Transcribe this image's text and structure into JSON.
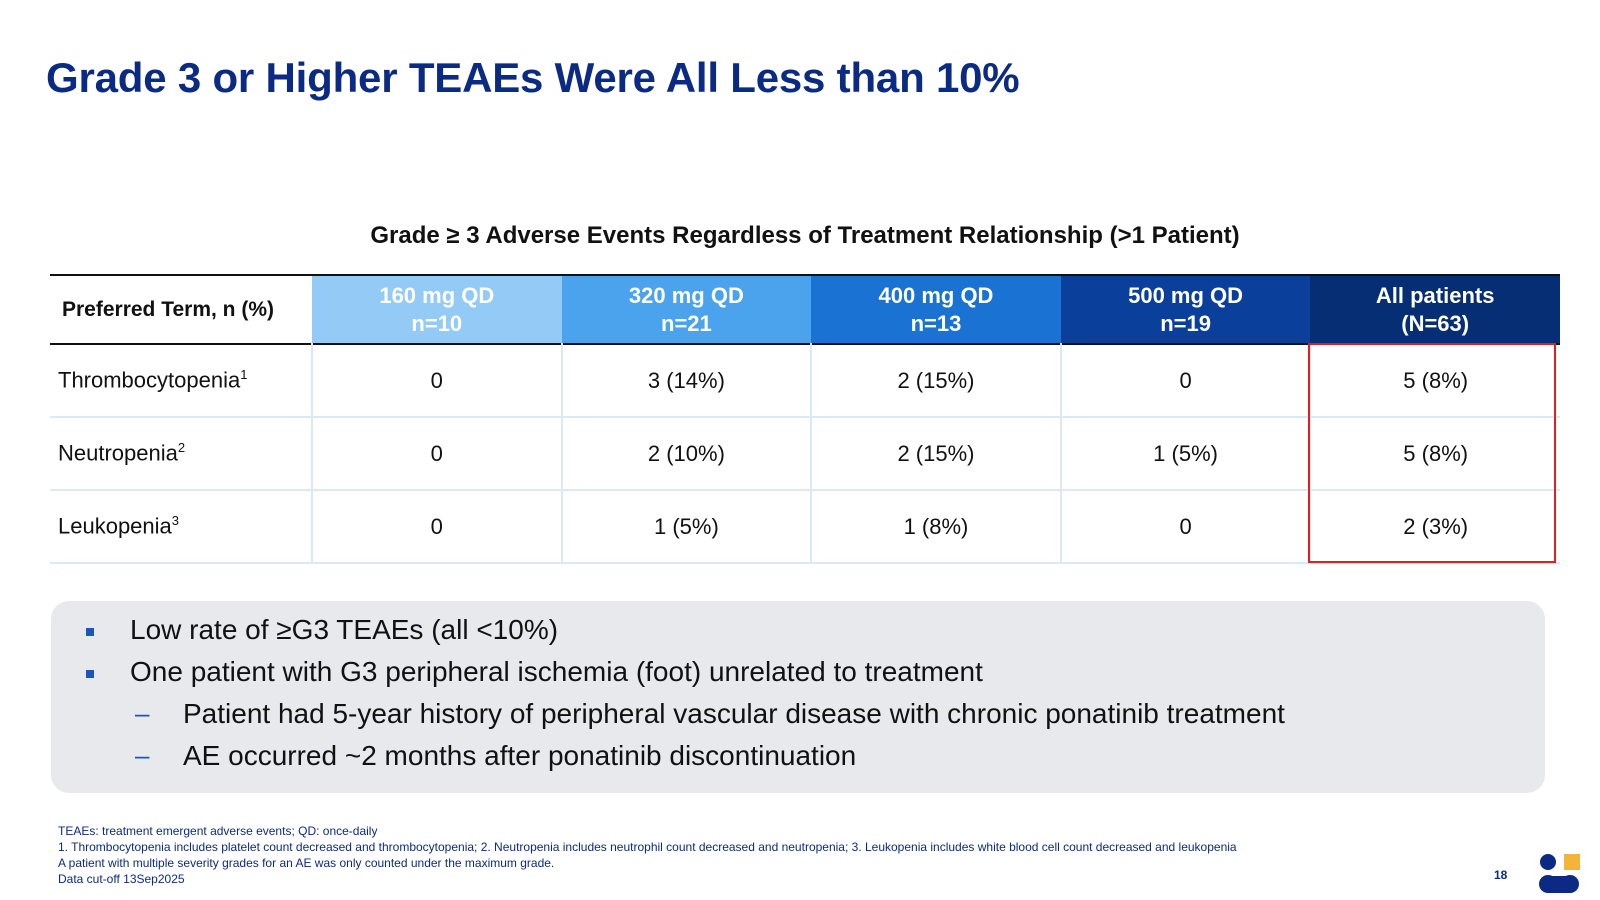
{
  "slide": {
    "title": "Grade 3 or Higher TEAEs Were All Less than 10%",
    "page_number": "18"
  },
  "table": {
    "caption": "Grade ≥ 3 Adverse Events Regardless of Treatment Relationship (>1 Patient)",
    "term_header": "Preferred Term, n (%)",
    "columns": [
      {
        "dose": "160 mg QD",
        "n": "n=10",
        "color": "#94cbf6"
      },
      {
        "dose": "320 mg QD",
        "n": "n=21",
        "color": "#4aa3ec"
      },
      {
        "dose": "400 mg QD",
        "n": "n=13",
        "color": "#1a72d2"
      },
      {
        "dose": "500 mg QD",
        "n": "n=19",
        "color": "#0a3f9c"
      },
      {
        "dose": "All patients",
        "n": "(N=63)",
        "color": "#062e74"
      }
    ],
    "rows": [
      {
        "term": "Thrombocytopenia",
        "sup": "1",
        "values": [
          "0",
          "3 (14%)",
          "2 (15%)",
          "0",
          "5 (8%)"
        ]
      },
      {
        "term": "Neutropenia",
        "sup": "2",
        "values": [
          "0",
          "2 (10%)",
          "2 (15%)",
          "1 (5%)",
          "5 (8%)"
        ]
      },
      {
        "term": "Leukopenia",
        "sup": "3",
        "values": [
          "0",
          "1 (5%)",
          "1 (8%)",
          "0",
          "2 (3%)"
        ]
      }
    ],
    "highlight_color": "#e02020"
  },
  "summary": {
    "bullets": [
      "Low rate of ≥G3 TEAEs (all <10%)",
      "One patient with G3 peripheral ischemia (foot) unrelated to treatment"
    ],
    "sub_bullets": [
      "Patient had 5-year history of peripheral vascular disease with chronic ponatinib treatment",
      "AE occurred ~2 months after ponatinib discontinuation"
    ],
    "dash_glyph": "–"
  },
  "footnotes": [
    "TEAEs: treatment emergent adverse events; QD: once-daily",
    "1. Thrombocytopenia includes platelet count decreased and thrombocytopenia; 2. Neutropenia includes neutrophil count decreased and neutropenia; 3. Leukopenia includes white blood cell count decreased and leukopenia",
    "A patient with multiple severity grades for an AE was only counted under the maximum grade.",
    "Data cut-off 13Sep2025"
  ],
  "colors": {
    "title": "#0b2a84",
    "bullet": "#1b57b6",
    "panel": "#e8e9ec",
    "logo_blue": "#0b2a84",
    "logo_gold": "#f2b53a"
  }
}
